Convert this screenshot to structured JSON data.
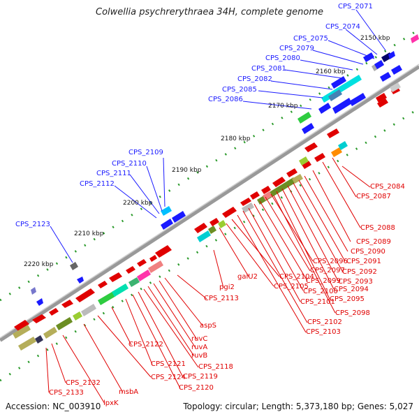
{
  "title": "Colwellia psychrerythraea 34H, complete genome",
  "footer": {
    "accession": "Accession: NC_003910",
    "summary": "Topology: circular; Length: 5,373,180 bp; Genes: 5,027"
  },
  "colors": {
    "backbone": "#8a8a8a",
    "blue_label": "#1a1aff",
    "red_label": "#e00000",
    "scale_dot": "#2a9a2a"
  },
  "scale_ticks": [
    "2150 kbp",
    "2160 kbp",
    "2170 kbp",
    "2180 kbp",
    "2190 kbp",
    "2200 kbp",
    "2210 kbp",
    "2220 kbp"
  ],
  "blue_labels": [
    "CPS_2071",
    "CPS_2074",
    "CPS_2075",
    "CPS_2079",
    "CPS_2080",
    "CPS_2081",
    "CPS_2082",
    "CPS_2085",
    "CPS_2086",
    "CPS_2109",
    "CPS_2110",
    "CPS_2111",
    "CPS_2112",
    "CPS_2123"
  ],
  "red_labels": [
    "CPS_2084",
    "CPS_2087",
    "CPS_2088",
    "CPS_2089",
    "CPS_2090",
    "CPS_2091",
    "CPS_2092",
    "CPS_2093",
    "CPS_2094",
    "CPS_2095",
    "CPS_2096",
    "CPS_2097",
    "CPS_2098",
    "CPS_2099",
    "CPS_2100",
    "CPS_2101",
    "CPS_2102",
    "CPS_2103",
    "CPS_2104",
    "CPS_2105",
    "galU2",
    "pgi2",
    "CPS_2113",
    "aspS",
    "ruvC",
    "ruvA",
    "ruvB",
    "CPS_2118",
    "CPS_2119",
    "CPS_2120",
    "CPS_2121",
    "CPS_2122",
    "CPS_2124",
    "msbA",
    "lpxK",
    "CPS_2132",
    "CPS_2133"
  ]
}
